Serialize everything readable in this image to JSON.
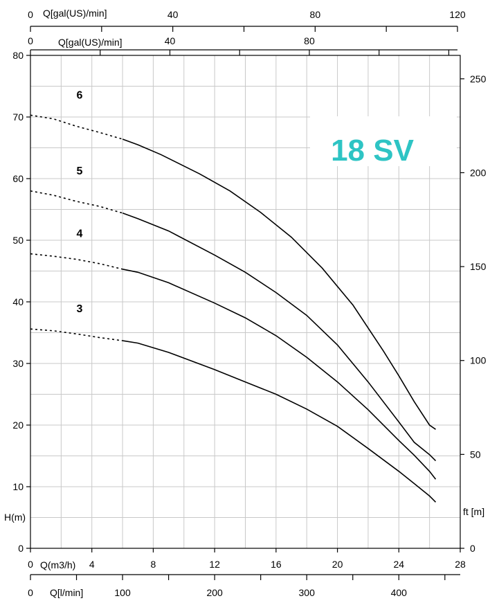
{
  "chart_data": {
    "type": "line",
    "title": "18 SV",
    "title_color": "#2ec4c4",
    "grid": true,
    "xlabel": "Q(m3/h)",
    "ylabel": "H(m)",
    "y2label": "ft [m]",
    "xlim": [
      0,
      28
    ],
    "ylim": [
      0,
      80
    ],
    "x_ticks": [
      "0",
      "4",
      "8",
      "12",
      "16",
      "20",
      "24",
      "28"
    ],
    "y_ticks": [
      "0",
      "10",
      "20",
      "30",
      "40",
      "50",
      "60",
      "70",
      "80"
    ],
    "y2_ticks": [
      "0",
      "50",
      "100",
      "150",
      "200",
      "250"
    ],
    "secondary_axes": {
      "top_outer": {
        "label": "Q[gal(US)/min]",
        "ticks": [
          "0",
          "40",
          "80",
          "120"
        ]
      },
      "top_inner": {
        "label": "Q[gal(US)/min]",
        "ticks": [
          "0",
          "40",
          "80"
        ]
      },
      "bottom": {
        "label": "Q[l/min]",
        "ticks": [
          "0",
          "100",
          "200",
          "300",
          "400"
        ]
      }
    },
    "series": [
      {
        "name": "6",
        "dashed": [
          [
            0,
            70.3
          ],
          [
            1.5,
            69.7
          ],
          [
            3,
            68.5
          ],
          [
            4.5,
            67.5
          ],
          [
            6,
            66.4
          ]
        ],
        "values": [
          [
            6,
            66.4
          ],
          [
            7,
            65.5
          ],
          [
            8.5,
            63.9
          ],
          [
            11,
            60.8
          ],
          [
            13,
            58.0
          ],
          [
            15,
            54.5
          ],
          [
            17,
            50.5
          ],
          [
            19,
            45.5
          ],
          [
            21,
            39.5
          ],
          [
            23,
            32.0
          ],
          [
            24,
            28.0
          ],
          [
            25,
            23.8
          ],
          [
            26,
            20.0
          ],
          [
            26.4,
            19.3
          ]
        ]
      },
      {
        "name": "5",
        "dashed": [
          [
            0,
            58.0
          ],
          [
            1.5,
            57.3
          ],
          [
            3,
            56.3
          ],
          [
            4.5,
            55.5
          ],
          [
            6,
            54.4
          ]
        ],
        "values": [
          [
            6,
            54.4
          ],
          [
            7,
            53.5
          ],
          [
            9,
            51.5
          ],
          [
            12,
            47.6
          ],
          [
            14,
            44.8
          ],
          [
            16,
            41.5
          ],
          [
            18,
            37.8
          ],
          [
            20,
            33.0
          ],
          [
            22,
            27.0
          ],
          [
            24,
            20.5
          ],
          [
            25,
            17.2
          ],
          [
            26,
            15.2
          ],
          [
            26.4,
            14.2
          ]
        ]
      },
      {
        "name": "4",
        "dashed": [
          [
            0,
            47.8
          ],
          [
            1.5,
            47.4
          ],
          [
            3,
            46.9
          ],
          [
            4.5,
            46.2
          ],
          [
            6,
            45.3
          ]
        ],
        "values": [
          [
            6,
            45.3
          ],
          [
            7,
            44.8
          ],
          [
            9,
            43.1
          ],
          [
            12,
            39.8
          ],
          [
            14,
            37.4
          ],
          [
            16,
            34.5
          ],
          [
            18,
            31.0
          ],
          [
            20,
            27.0
          ],
          [
            22,
            22.5
          ],
          [
            24,
            17.5
          ],
          [
            25,
            15.1
          ],
          [
            26,
            12.5
          ],
          [
            26.4,
            11.2
          ]
        ]
      },
      {
        "name": "3",
        "dashed": [
          [
            0,
            35.6
          ],
          [
            1.5,
            35.3
          ],
          [
            3,
            34.8
          ],
          [
            4.5,
            34.2
          ],
          [
            6,
            33.7
          ]
        ],
        "values": [
          [
            6,
            33.7
          ],
          [
            7,
            33.3
          ],
          [
            9,
            31.8
          ],
          [
            12,
            29.0
          ],
          [
            14,
            27.0
          ],
          [
            16,
            25.0
          ],
          [
            18,
            22.6
          ],
          [
            20,
            19.8
          ],
          [
            22,
            16.2
          ],
          [
            24,
            12.5
          ],
          [
            25,
            10.5
          ],
          [
            26,
            8.5
          ],
          [
            26.4,
            7.5
          ]
        ]
      }
    ]
  }
}
